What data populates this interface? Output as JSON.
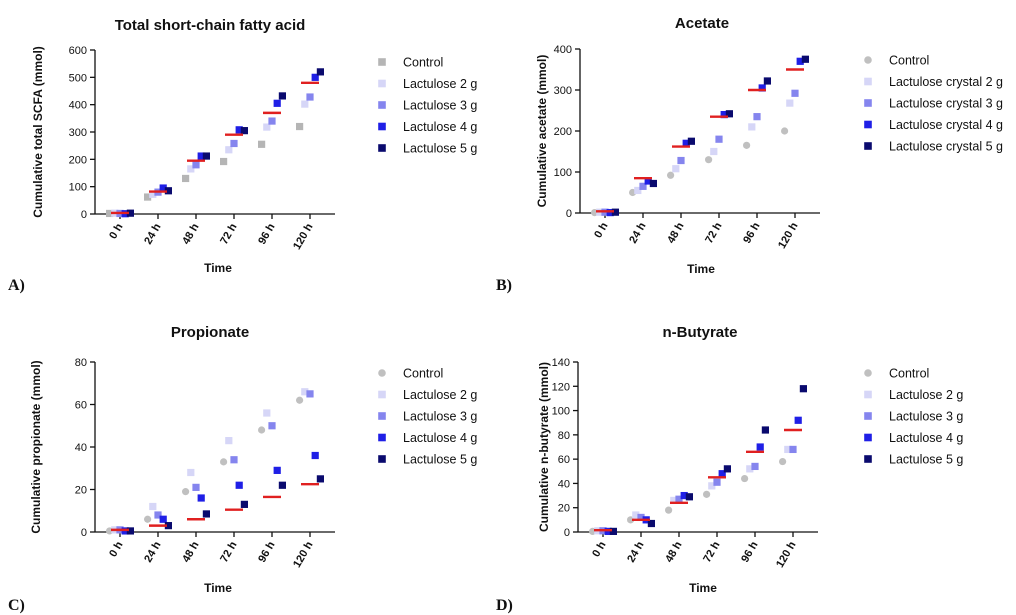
{
  "chart_data": [
    {
      "type": "scatter",
      "panel": "A)",
      "title": "Total short-chain fatty acid",
      "ylabel": "Cumulative total SCFA (mmol)",
      "xlabel": "Time",
      "categories": [
        "0 h",
        "24 h",
        "48 h",
        "72 h",
        "96 h",
        "120 h"
      ],
      "ylim": [
        0,
        600
      ],
      "yticks": [
        0,
        100,
        200,
        300,
        400,
        500,
        600
      ],
      "series": [
        {
          "name": "Control",
          "marker": "square",
          "color": "#b5b5b5",
          "values": [
            2,
            62,
            130,
            192,
            255,
            320
          ]
        },
        {
          "name": "Lactulose 2 g",
          "marker": "square",
          "color": "#d6d6f7",
          "values": [
            3,
            72,
            165,
            235,
            318,
            402
          ]
        },
        {
          "name": "Lactulose 3 g",
          "marker": "square",
          "color": "#8585ee",
          "values": [
            2,
            80,
            180,
            258,
            340,
            428
          ]
        },
        {
          "name": "Lactulose 4 g",
          "marker": "square",
          "color": "#1f1fe6",
          "values": [
            1,
            95,
            212,
            308,
            405,
            500
          ]
        },
        {
          "name": "Lactulose 5 g",
          "marker": "square",
          "color": "#0a0a6e",
          "values": [
            3,
            85,
            212,
            305,
            432,
            520
          ]
        }
      ],
      "means": [
        4,
        82,
        195,
        290,
        370,
        480
      ],
      "mean_color": "#e02020"
    },
    {
      "type": "scatter",
      "panel": "B)",
      "title": "Acetate",
      "ylabel": "Cumulative acetate (mmol)",
      "xlabel": "Time",
      "categories": [
        "0 h",
        "24 h",
        "48 h",
        "72 h",
        "96 h",
        "120 h"
      ],
      "ylim": [
        0,
        400
      ],
      "yticks": [
        0,
        100,
        200,
        300,
        400
      ],
      "series": [
        {
          "name": "Control",
          "marker": "circle",
          "color": "#c0c0c0",
          "values": [
            1,
            50,
            92,
            130,
            165,
            200
          ]
        },
        {
          "name": "Lactulose crystal 2 g",
          "marker": "square",
          "color": "#d6d6f7",
          "values": [
            2,
            55,
            108,
            150,
            210,
            268
          ]
        },
        {
          "name": "Lactulose crystal 3 g",
          "marker": "square",
          "color": "#8585ee",
          "values": [
            2,
            65,
            128,
            180,
            235,
            292
          ]
        },
        {
          "name": "Lactulose crystal 4 g",
          "marker": "square",
          "color": "#1f1fe6",
          "values": [
            1,
            78,
            170,
            240,
            305,
            370
          ]
        },
        {
          "name": "Lactulose crystal 5 g",
          "marker": "square",
          "color": "#0a0a6e",
          "values": [
            2,
            72,
            175,
            242,
            322,
            375
          ]
        }
      ],
      "means": [
        4,
        85,
        162,
        235,
        300,
        350
      ],
      "mean_color": "#e02020"
    },
    {
      "type": "scatter",
      "panel": "C)",
      "title": "Propionate",
      "ylabel": "Cumulative propionate (mmol)",
      "xlabel": "Time",
      "categories": [
        "0 h",
        "24 h",
        "48 h",
        "72 h",
        "96 h",
        "120 h"
      ],
      "ylim": [
        0,
        80
      ],
      "yticks": [
        0,
        20,
        40,
        60,
        80
      ],
      "series": [
        {
          "name": "Control",
          "marker": "circle",
          "color": "#c0c0c0",
          "values": [
            0.5,
            6,
            19,
            33,
            48,
            62
          ]
        },
        {
          "name": "Lactulose 2 g",
          "marker": "square",
          "color": "#d6d6f7",
          "values": [
            1,
            12,
            28,
            43,
            56,
            66
          ]
        },
        {
          "name": "Lactulose 3 g",
          "marker": "square",
          "color": "#8585ee",
          "values": [
            1,
            8,
            21,
            34,
            50,
            65
          ]
        },
        {
          "name": "Lactulose 4 g",
          "marker": "square",
          "color": "#1f1fe6",
          "values": [
            0.5,
            6,
            16,
            22,
            29,
            36
          ]
        },
        {
          "name": "Lactulose 5 g",
          "marker": "square",
          "color": "#0a0a6e",
          "values": [
            0.5,
            3,
            8.5,
            13,
            22,
            25
          ]
        }
      ],
      "means": [
        1,
        3,
        6,
        10.5,
        16.5,
        22.5
      ],
      "mean_color": "#e02020"
    },
    {
      "type": "scatter",
      "panel": "D)",
      "title": "n-Butyrate",
      "ylabel": "Cumulative n-butyrate (mmol)",
      "xlabel": "Time",
      "categories": [
        "0 h",
        "24 h",
        "48 h",
        "72 h",
        "96 h",
        "120 h"
      ],
      "ylim": [
        0,
        140
      ],
      "yticks": [
        0,
        20,
        40,
        60,
        80,
        100,
        120,
        140
      ],
      "series": [
        {
          "name": "Control",
          "marker": "circle",
          "color": "#c0c0c0",
          "values": [
            0.5,
            10,
            18,
            31,
            44,
            58
          ]
        },
        {
          "name": "Lactulose 2 g",
          "marker": "square",
          "color": "#d6d6f7",
          "values": [
            1,
            14,
            26,
            38,
            52,
            68
          ]
        },
        {
          "name": "Lactulose 3 g",
          "marker": "square",
          "color": "#8585ee",
          "values": [
            1,
            12,
            27,
            41,
            54,
            68
          ]
        },
        {
          "name": "Lactulose 4 g",
          "marker": "square",
          "color": "#1f1fe6",
          "values": [
            0.5,
            10,
            30,
            48,
            70,
            92
          ]
        },
        {
          "name": "Lactulose 5 g",
          "marker": "square",
          "color": "#0a0a6e",
          "values": [
            0.5,
            7,
            29,
            52,
            84,
            118
          ]
        }
      ],
      "means": [
        1.5,
        10,
        24,
        45,
        66,
        84
      ],
      "mean_color": "#e02020"
    }
  ]
}
